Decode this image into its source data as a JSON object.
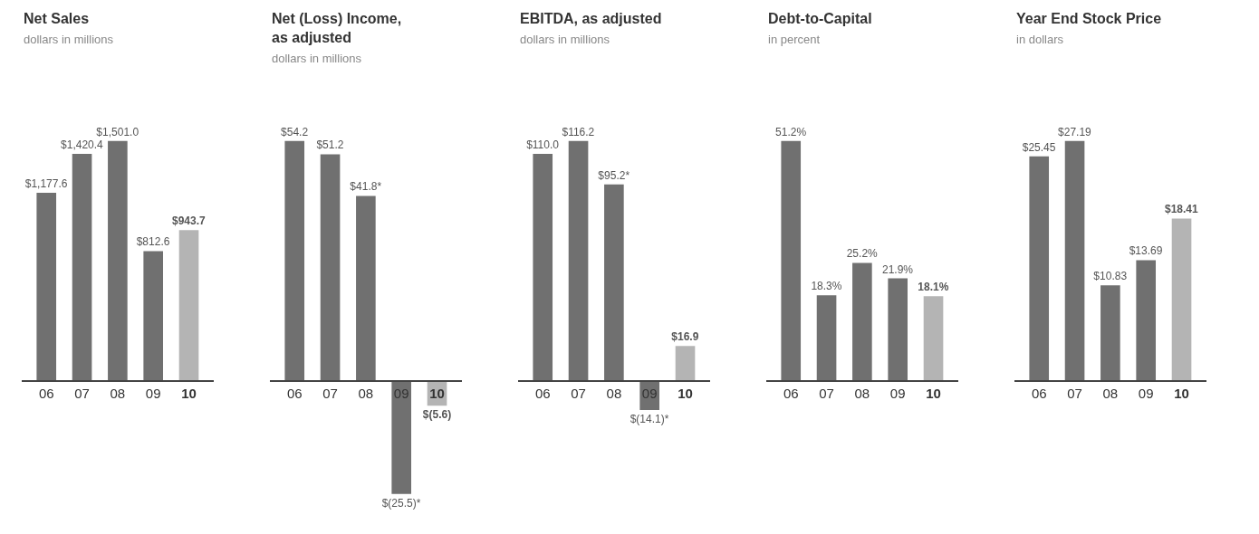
{
  "chart_data": [
    {
      "type": "bar",
      "title": "Net Sales",
      "subtitle": "dollars in millions",
      "categories": [
        "06",
        "07",
        "08",
        "09",
        "10"
      ],
      "values": [
        1177.6,
        1420.4,
        1501.0,
        812.6,
        943.7
      ],
      "colors": [
        "#707070",
        "#707070",
        "#707070",
        "#707070",
        "#b4b4b4"
      ],
      "value_labels": [
        "$1,177.6",
        "$1,420.4",
        "$1,501.0",
        "$812.6",
        "$943.7"
      ]
    },
    {
      "type": "bar",
      "title": "Net (Loss) Income, as adjusted",
      "subtitle": "dollars in millions",
      "categories": [
        "06",
        "07",
        "08",
        "09",
        "10"
      ],
      "values": [
        54.2,
        51.2,
        41.8,
        -25.5,
        -5.6
      ],
      "colors": [
        "#707070",
        "#707070",
        "#707070",
        "#707070",
        "#b4b4b4"
      ],
      "value_labels": [
        "$54.2",
        "$51.2",
        "$41.8*",
        "$(25.5)*",
        "$(5.6)"
      ]
    },
    {
      "type": "bar",
      "title": "EBITDA, as adjusted",
      "subtitle": "dollars in millions",
      "categories": [
        "06",
        "07",
        "08",
        "09",
        "10"
      ],
      "values": [
        110.0,
        116.2,
        95.2,
        -14.1,
        16.9
      ],
      "colors": [
        "#707070",
        "#707070",
        "#707070",
        "#707070",
        "#b4b4b4"
      ],
      "value_labels": [
        "$110.0",
        "$116.2",
        "$95.2*",
        "$(14.1)*",
        "$16.9"
      ]
    },
    {
      "type": "bar",
      "title": "Debt-to-Capital",
      "subtitle": "in percent",
      "categories": [
        "06",
        "07",
        "08",
        "09",
        "10"
      ],
      "values": [
        51.2,
        18.3,
        25.2,
        21.9,
        18.1
      ],
      "colors": [
        "#707070",
        "#707070",
        "#707070",
        "#707070",
        "#b4b4b4"
      ],
      "value_labels": [
        "51.2%",
        "18.3%",
        "25.2%",
        "21.9%",
        "18.1%"
      ]
    },
    {
      "type": "bar",
      "title": "Year End Stock Price",
      "subtitle": "in dollars",
      "categories": [
        "06",
        "07",
        "08",
        "09",
        "10"
      ],
      "values": [
        25.45,
        27.19,
        10.83,
        13.69,
        18.41
      ],
      "colors": [
        "#707070",
        "#707070",
        "#707070",
        "#707070",
        "#b4b4b4"
      ],
      "value_labels": [
        "$25.45",
        "$27.19",
        "$10.83",
        "$13.69",
        "$18.41"
      ]
    }
  ]
}
